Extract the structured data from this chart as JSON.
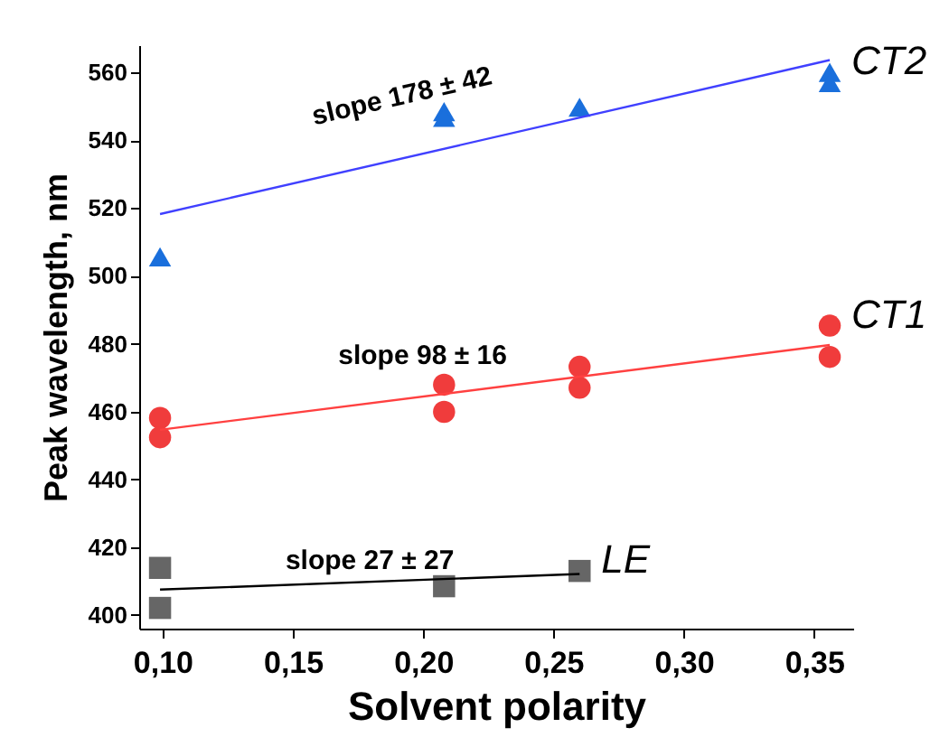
{
  "chart_data": {
    "type": "scatter",
    "xlabel": "Solvent polarity",
    "ylabel": "Peak wavelength, nm",
    "xlim": [
      0.091,
      0.365
    ],
    "ylim": [
      396,
      568
    ],
    "xticks": [
      {
        "value": 0.1,
        "label": "0,10"
      },
      {
        "value": 0.15,
        "label": "0,15"
      },
      {
        "value": 0.2,
        "label": "0,20"
      },
      {
        "value": 0.25,
        "label": "0,25"
      },
      {
        "value": 0.3,
        "label": "0,30"
      },
      {
        "value": 0.35,
        "label": "0,35"
      }
    ],
    "yticks": [
      400,
      420,
      440,
      460,
      480,
      500,
      520,
      540,
      560
    ],
    "grid": false,
    "legend": false,
    "series": [
      {
        "name": "CT2",
        "marker": "triangle",
        "color": "#1a6fdc",
        "x": [
          0.099,
          0.208,
          0.208,
          0.26,
          0.356,
          0.356
        ],
        "values": [
          505.6,
          548.4,
          546.7,
          549.7,
          560,
          557
        ]
      },
      {
        "type": "line",
        "marker": "none",
        "color": "#4040ff",
        "x": [
          0.099,
          0.356
        ],
        "values": [
          518.2,
          563.6
        ]
      },
      {
        "name": "CT1",
        "marker": "circle",
        "color": "#f03c3c",
        "x": [
          0.099,
          0.099,
          0.208,
          0.208,
          0.26,
          0.26,
          0.356,
          0.356
        ],
        "values": [
          458.1,
          452.4,
          467.9,
          459.9,
          473.2,
          467.0,
          485.3,
          476.1
        ]
      },
      {
        "type": "line",
        "marker": "none",
        "color": "#ff4040",
        "x": [
          0.099,
          0.356
        ],
        "values": [
          454.6,
          479.6
        ]
      },
      {
        "name": "LE",
        "marker": "square",
        "color": "#666666",
        "x": [
          0.099,
          0.099,
          0.208,
          0.26
        ],
        "values": [
          413.9,
          402.1,
          408.5,
          413
        ]
      },
      {
        "type": "line",
        "marker": "none",
        "color": "#000000",
        "x": [
          0.099,
          0.26
        ],
        "values": [
          407.5,
          412.1
        ]
      }
    ],
    "annotations": [
      "slope 178 ± 42",
      "slope 98 ± 16",
      "slope 27 ± 27"
    ]
  }
}
